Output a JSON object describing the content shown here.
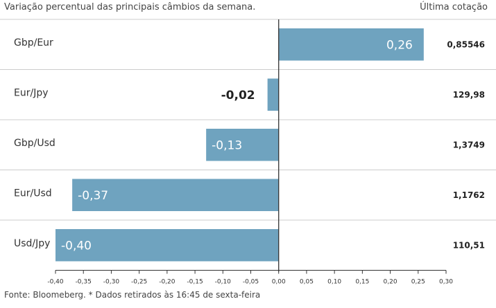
{
  "header": {
    "subtitle": "Variação percentual das principais câmbios da semana.",
    "last_quote_header": "Última cotação"
  },
  "footer": {
    "source": "Fonte: Bloomeberg. * Dados retirados às 16:45 de sexta-feira"
  },
  "colors": {
    "bar": "#6fa3bf",
    "rule": "#cccccc",
    "axis": "#333333"
  },
  "chart_data": {
    "type": "bar",
    "orientation": "horizontal",
    "title": "",
    "subtitle": "Variação percentual das principais câmbios da semana.",
    "categories": [
      "Gbp/Eur",
      "Eur/Jpy",
      "Gbp/Usd",
      "Eur/Usd",
      "Usd/Jpy"
    ],
    "values": [
      0.26,
      -0.02,
      -0.13,
      -0.37,
      -0.4
    ],
    "value_labels": [
      "0,26",
      "-0,02",
      "-0,13",
      "-0,37",
      "-0,40"
    ],
    "last_quote": [
      "0,85546",
      "129,98",
      "1,3749",
      "1,1762",
      "110,51"
    ],
    "xlim": [
      -0.4,
      0.3
    ],
    "x_ticks": [
      -0.4,
      -0.35,
      -0.3,
      -0.25,
      -0.2,
      -0.15,
      -0.1,
      -0.05,
      0.0,
      0.05,
      0.1,
      0.15,
      0.2,
      0.25,
      0.3
    ],
    "x_tick_labels": [
      "-0,40",
      "-0,35",
      "-0,30",
      "-0,25",
      "-0,20",
      "-0,15",
      "-0,10",
      "-0,05",
      "0,00",
      "0,05",
      "0,10",
      "0,15",
      "0,20",
      "0,25",
      "0,30"
    ],
    "grid": false
  }
}
